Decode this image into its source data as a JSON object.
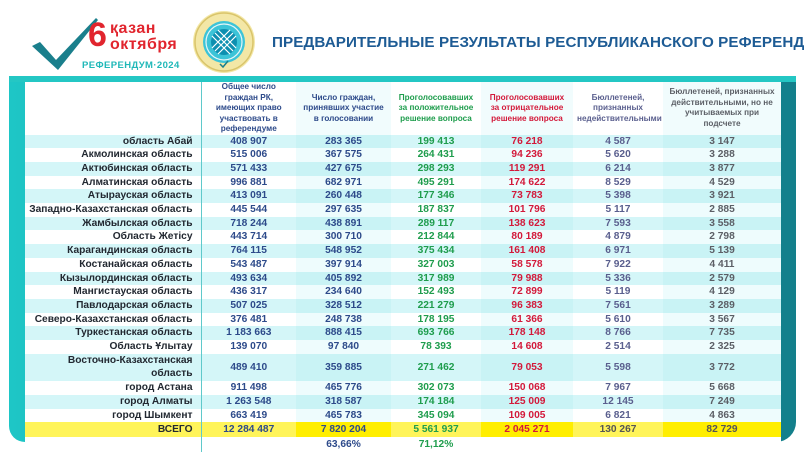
{
  "header": {
    "logo": {
      "day": "6",
      "month_kz": "қазан",
      "month_ru": "октября",
      "subtitle": "РЕФЕРЕНДУМ·2024"
    },
    "emblem": "central-election-commission-emblem",
    "title": "ПРЕДВАРИТЕЛЬНЫЕ РЕЗУЛЬТАТЫ РЕСПУБЛИКАНСКОГО РЕФЕРЕНДУМА"
  },
  "colors": {
    "frame": "#16a9ad",
    "title": "#1d5b94",
    "logo_red": "#e1252e",
    "logo_teal": "#1fb8b8",
    "total_row": "#fff45a",
    "yes_votes": "#1f9d4d",
    "no_votes": "#d3193a",
    "numbers": "#2d4a8a"
  },
  "table": {
    "columns": [
      "",
      "Общее число граждан РК, имеющих право участвовать в референдуме",
      "Число граждан, принявших участие в голосовании",
      "Проголосовавших за положительное решение вопроса",
      "Проголосовавших за отрицательное решение вопроса",
      "Бюллетеней, признанных недействительными",
      "Бюллетеней, признанных действительными, но не учитываемых при подсчете"
    ],
    "rows": [
      [
        "область Абай",
        "408 907",
        "283 365",
        "199 413",
        "76 218",
        "4 587",
        "3 147"
      ],
      [
        "Акмолинская область",
        "515 006",
        "367 575",
        "264 431",
        "94 236",
        "5 620",
        "3 288"
      ],
      [
        "Актюбинская область",
        "571 433",
        "427 675",
        "298 293",
        "119 291",
        "6 214",
        "3 877"
      ],
      [
        "Алматинская область",
        "996 881",
        "682 971",
        "495 291",
        "174 622",
        "8 529",
        "4 529"
      ],
      [
        "Атырауская область",
        "413 091",
        "260 448",
        "177 346",
        "73 783",
        "5 398",
        "3 921"
      ],
      [
        "Западно-Казахстанская область",
        "445 544",
        "297 635",
        "187 837",
        "101 796",
        "5 117",
        "2 885"
      ],
      [
        "Жамбылская область",
        "718 244",
        "438 891",
        "289 117",
        "138 623",
        "7 593",
        "3 558"
      ],
      [
        "Область Жетісу",
        "443 714",
        "300 710",
        "212 844",
        "80 189",
        "4 879",
        "2 798"
      ],
      [
        "Карагандинская область",
        "764 115",
        "548 952",
        "375 434",
        "161 408",
        "6 971",
        "5 139"
      ],
      [
        "Костанайская область",
        "543 487",
        "397 914",
        "327 003",
        "58 578",
        "7 922",
        "4 411"
      ],
      [
        "Кызылординская область",
        "493 634",
        "405 892",
        "317 989",
        "79 988",
        "5 336",
        "2 579"
      ],
      [
        "Мангистауская область",
        "436 317",
        "234 640",
        "152 493",
        "72 899",
        "5 119",
        "4 129"
      ],
      [
        "Павлодарская область",
        "507 025",
        "328 512",
        "221 279",
        "96 383",
        "7 561",
        "3 289"
      ],
      [
        "Северо-Казахстанская область",
        "376 481",
        "248 738",
        "178 195",
        "61 366",
        "5 610",
        "3 567"
      ],
      [
        "Туркестанская область",
        "1 183 663",
        "888 415",
        "693 766",
        "178 148",
        "8 766",
        "7 735"
      ],
      [
        "Область Ұлытау",
        "139 070",
        "97 840",
        "78 393",
        "14 608",
        "2 514",
        "2 325"
      ],
      [
        "Восточно-Казахстанская область",
        "489 410",
        "359 885",
        "271 462",
        "79 053",
        "5 598",
        "3 772"
      ],
      [
        "город Астана",
        "911 498",
        "465 776",
        "302 073",
        "150 068",
        "7 967",
        "5 668"
      ],
      [
        "город Алматы",
        "1 263 548",
        "318 587",
        "174 184",
        "125 009",
        "12 145",
        "7 249"
      ],
      [
        "город Шымкент",
        "663 419",
        "465 783",
        "345 094",
        "109 005",
        "6 821",
        "4 863"
      ]
    ],
    "total": [
      "ВСЕГО",
      "12 284 487",
      "7 820 204",
      "5 561 937",
      "2 045 271",
      "130 267",
      "82 729"
    ],
    "percentages": [
      "",
      "",
      "63,66%",
      "71,12%",
      "",
      "",
      ""
    ]
  }
}
